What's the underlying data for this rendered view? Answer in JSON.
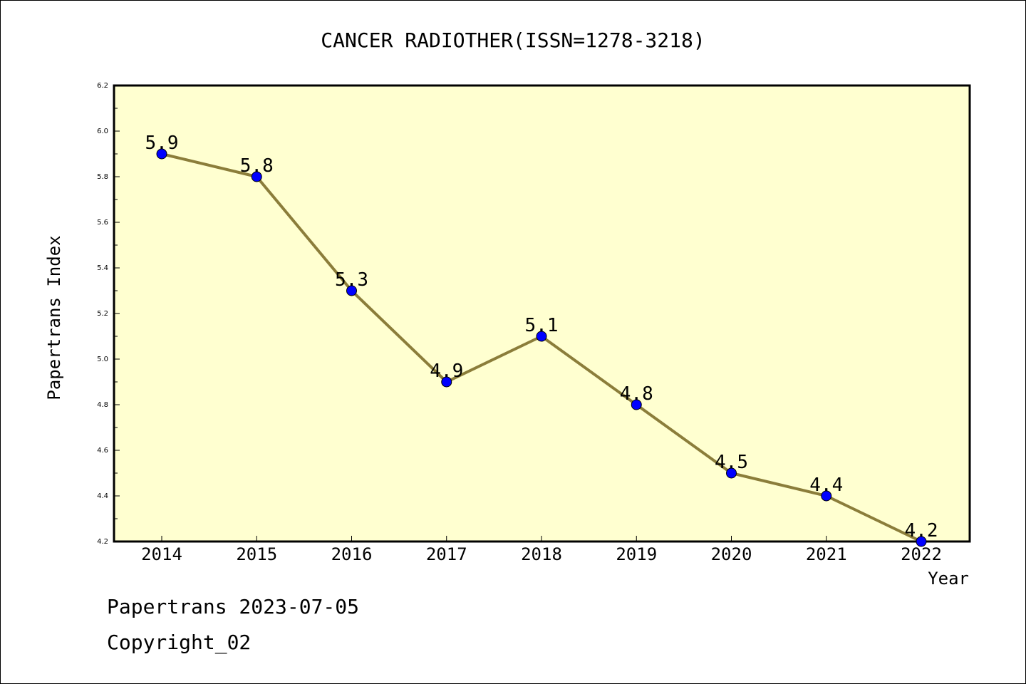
{
  "chart_data": {
    "type": "line",
    "title": "CANCER RADIOTHER(ISSN=1278-3218)",
    "xlabel": "Year",
    "ylabel": "Papertrans Index",
    "categories": [
      "2014",
      "2015",
      "2016",
      "2017",
      "2018",
      "2019",
      "2020",
      "2021",
      "2022"
    ],
    "series": [
      {
        "values": [
          5.9,
          5.8,
          5.3,
          4.9,
          5.1,
          4.8,
          4.5,
          4.4,
          4.2
        ],
        "labels": [
          "5.9",
          "5.8",
          "5.3",
          "4.9",
          "5.1",
          "4.8",
          "4.5",
          "4.4",
          "4.2"
        ],
        "line_color": "#8b7d3a",
        "marker_color": "#0000ff"
      }
    ],
    "ylim": [
      4.2,
      6.2
    ],
    "yticks": [
      "4.2",
      "4.4",
      "4.6",
      "4.8",
      "5.0",
      "5.2",
      "5.4",
      "5.6",
      "5.8",
      "6.0",
      "6.2"
    ],
    "grid": false,
    "plot_background": "#ffffd0"
  },
  "footer": {
    "line1": "Papertrans 2023-07-05",
    "line2": "Copyright_02"
  }
}
